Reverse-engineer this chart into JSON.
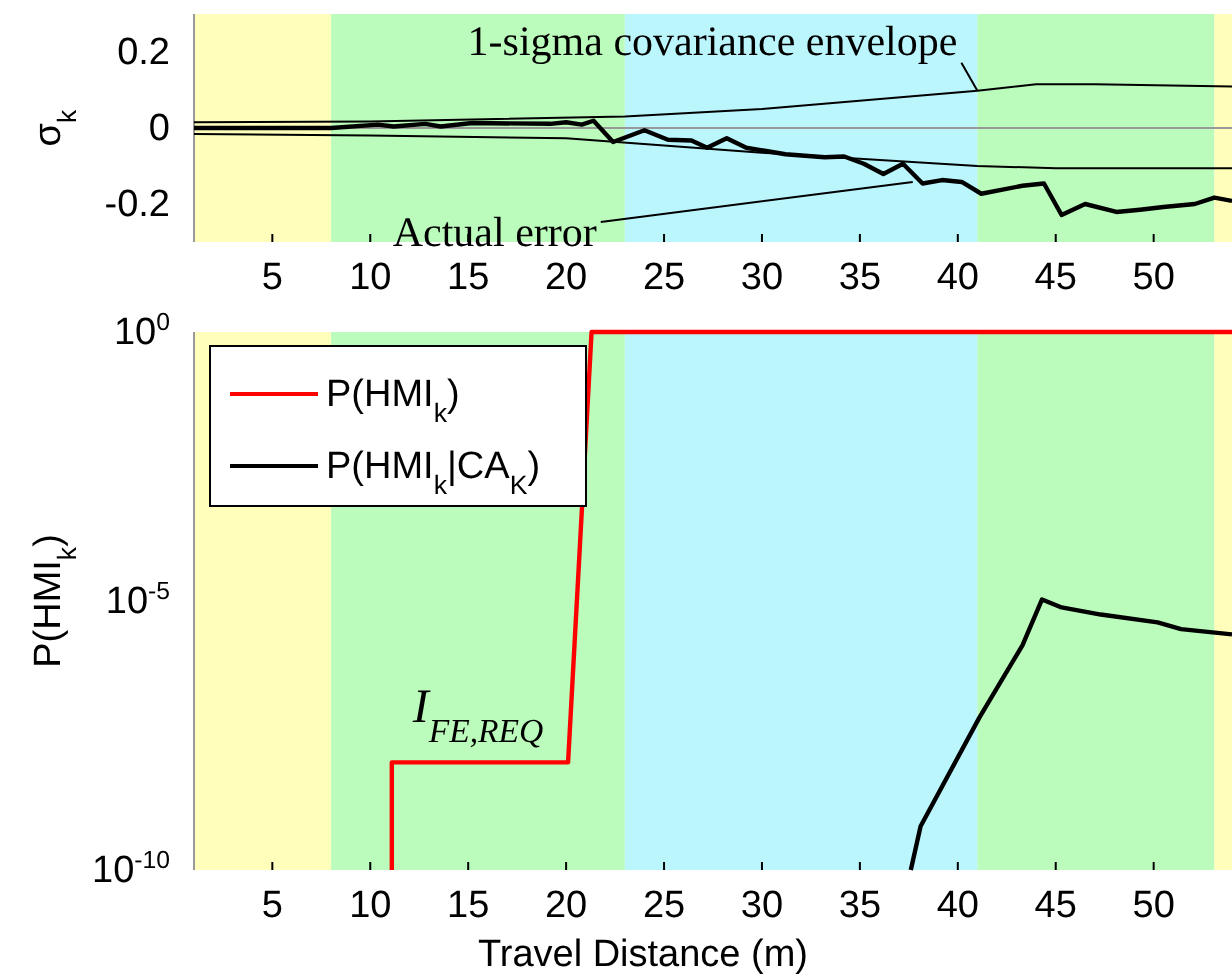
{
  "chart_data": [
    {
      "type": "line",
      "ylabel": "σ$_{k}$",
      "xlim": [
        1,
        54
      ],
      "xticks": [
        5,
        10,
        15,
        20,
        25,
        30,
        35,
        40,
        45,
        50
      ],
      "ylim": [
        -0.3,
        0.3
      ],
      "yticks": [
        -0.2,
        0,
        0.2
      ],
      "grid": false,
      "legend": false,
      "bands": [
        {
          "axis": "x",
          "from": 1,
          "to": 8,
          "color": "#ffffbb"
        },
        {
          "axis": "x",
          "from": 8,
          "to": 23,
          "color": "#bbfbbb"
        },
        {
          "axis": "x",
          "from": 23,
          "to": 41,
          "color": "#bbf6fd"
        },
        {
          "axis": "x",
          "from": 41,
          "to": 53.1,
          "color": "#bbfbbb"
        },
        {
          "axis": "x",
          "from": 53.1,
          "to": 54,
          "color": "#ffffbb"
        }
      ],
      "ref_lines": [
        {
          "axis": "y",
          "value": 0,
          "color": "#999999"
        }
      ],
      "annotations": [
        {
          "text": "1-sigma covariance envelope",
          "x": 41,
          "y": 0.098
        },
        {
          "text": "Actual error",
          "x": 37.7,
          "y": -0.142
        }
      ],
      "series": [
        {
          "color": "#000000",
          "x": [
            1,
            10,
            23,
            30,
            41,
            44,
            47,
            54
          ],
          "values": [
            0.015,
            0.017,
            0.03,
            0.05,
            0.098,
            0.115,
            0.115,
            0.109
          ]
        },
        {
          "color": "#000000",
          "x": [
            1,
            10,
            20,
            30,
            41,
            45,
            54
          ],
          "values": [
            -0.016,
            -0.02,
            -0.027,
            -0.065,
            -0.1,
            -0.106,
            -0.106
          ]
        },
        {
          "color": "#000000",
          "x": [
            1,
            8,
            10.4,
            11.2,
            12.8,
            13.6,
            15.2,
            19.2,
            20,
            20.8,
            21.4,
            22.4,
            24,
            25.2,
            26.4,
            27.2,
            28.2,
            29.2,
            31.2,
            33.2,
            34.2,
            35.2,
            36.2,
            37.2,
            38.2,
            39.2,
            40.2,
            41.2,
            43.3,
            44.4,
            45.3,
            46.5,
            48.1,
            49.3,
            50.5,
            52.1,
            53.1,
            54
          ],
          "values": [
            0,
            0,
            0.009,
            0.004,
            0.011,
            0.004,
            0.013,
            0.011,
            0.015,
            0.009,
            0.019,
            -0.037,
            -0.006,
            -0.031,
            -0.033,
            -0.052,
            -0.027,
            -0.052,
            -0.069,
            -0.077,
            -0.075,
            -0.094,
            -0.121,
            -0.094,
            -0.146,
            -0.137,
            -0.142,
            -0.173,
            -0.152,
            -0.146,
            -0.229,
            -0.2,
            -0.221,
            -0.215,
            -0.208,
            -0.2,
            -0.183,
            -0.192
          ]
        }
      ]
    },
    {
      "type": "line",
      "xlabel": "Travel Distance (m)",
      "ylabel": "P(HMI$_{k}$)",
      "log": "y",
      "xlim": [
        1,
        54
      ],
      "xticks": [
        5,
        10,
        15,
        20,
        25,
        30,
        35,
        40,
        45,
        50
      ],
      "ylim": [
        1e-10,
        1
      ],
      "yticks": [
        {
          "value": 1e-10,
          "label": "10$^{-10}$"
        },
        {
          "value": 1e-05,
          "label": "10$^{-5}$"
        },
        {
          "value": 1,
          "label": "10$^{0}$"
        }
      ],
      "grid": false,
      "legend": "top left",
      "bands": [
        {
          "axis": "x",
          "from": 1,
          "to": 8,
          "color": "#ffffbb"
        },
        {
          "axis": "x",
          "from": 8,
          "to": 23,
          "color": "#bbfbbb"
        },
        {
          "axis": "x",
          "from": 23,
          "to": 41,
          "color": "#bbf6fd"
        },
        {
          "axis": "x",
          "from": 41,
          "to": 53.1,
          "color": "#bbfbbb"
        },
        {
          "axis": "x",
          "from": 53.1,
          "to": 54,
          "color": "#ffffbb"
        }
      ],
      "annotations": [
        {
          "text": "I$_{FE,REQ}$",
          "x": 15.5,
          "y": 1e-08
        }
      ],
      "series": [
        {
          "name": "P(HMI$_{k}$)",
          "color": "#ff0000",
          "x": [
            11.1,
            11.1,
            20.1,
            21.3,
            54
          ],
          "values": [
            1e-10,
            1e-08,
            1e-08,
            1,
            1
          ]
        },
        {
          "name": "P(HMI$_{k}$|CA$_{K}$)",
          "color": "#000000",
          "x": [
            37.6,
            38.1,
            41.1,
            43.3,
            44.3,
            45.3,
            47.3,
            50.2,
            51.4,
            54
          ],
          "values": [
            1e-10,
            6.5e-10,
            6.8e-08,
            1.5e-06,
            1.07e-05,
            7.6e-06,
            5.6e-06,
            4e-06,
            3e-06,
            2.4e-06
          ]
        }
      ]
    }
  ]
}
